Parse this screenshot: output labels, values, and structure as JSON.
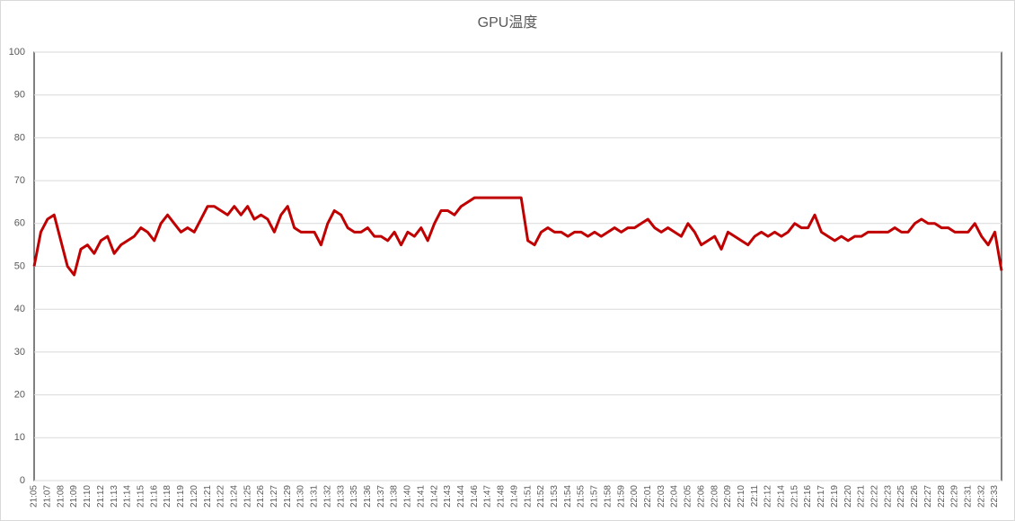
{
  "chart_data": {
    "type": "line",
    "title": "GPU温度",
    "categories": [
      "21:05",
      null,
      "21:07",
      null,
      "21:08",
      null,
      "21:09",
      null,
      "21:10",
      null,
      "21:12",
      null,
      "21:13",
      null,
      "21:14",
      null,
      "21:15",
      null,
      "21:16",
      null,
      "21:18",
      null,
      "21:19",
      null,
      "21:20",
      null,
      "21:21",
      null,
      "21:22",
      null,
      "21:24",
      null,
      "21:25",
      null,
      "21:26",
      null,
      "21:27",
      null,
      "21:29",
      null,
      "21:30",
      null,
      "21:31",
      null,
      "21:32",
      null,
      "21:33",
      null,
      "21:35",
      null,
      "21:36",
      null,
      "21:37",
      null,
      "21:38",
      null,
      "21:40",
      null,
      "21:41",
      null,
      "21:42",
      null,
      "21:43",
      null,
      "21:44",
      null,
      "21:46",
      null,
      "21:47",
      null,
      "21:48",
      null,
      "21:49",
      null,
      "21:51",
      null,
      "21:52",
      null,
      "21:53",
      null,
      "21:54",
      null,
      "21:55",
      null,
      "21:57",
      null,
      "21:58",
      null,
      "21:59",
      null,
      "22:00",
      null,
      "22:01",
      null,
      "22:03",
      null,
      "22:04",
      null,
      "22:05",
      null,
      "22:06",
      null,
      "22:08",
      null,
      "22:09",
      null,
      "22:10",
      null,
      "22:11",
      null,
      "22:12",
      null,
      "22:14",
      null,
      "22:15",
      null,
      "22:16",
      null,
      "22:17",
      null,
      "22:19",
      null,
      "22:20",
      null,
      "22:21",
      null,
      "22:22",
      null,
      "22:23",
      null,
      "22:25",
      null,
      "22:26",
      null,
      "22:27",
      null,
      "22:28",
      null,
      "22:29",
      null,
      "22:31",
      null,
      "22:32",
      null,
      "22:33",
      null
    ],
    "values": [
      50,
      58,
      61,
      62,
      56,
      50,
      48,
      54,
      55,
      53,
      56,
      57,
      53,
      55,
      56,
      57,
      59,
      58,
      56,
      60,
      62,
      60,
      58,
      59,
      58,
      61,
      64,
      64,
      63,
      62,
      64,
      62,
      64,
      61,
      62,
      61,
      58,
      62,
      64,
      59,
      58,
      58,
      58,
      55,
      60,
      63,
      62,
      59,
      58,
      58,
      59,
      57,
      57,
      56,
      58,
      55,
      58,
      57,
      59,
      56,
      60,
      63,
      63,
      62,
      64,
      65,
      66,
      66,
      66,
      66,
      66,
      66,
      66,
      66,
      56,
      55,
      58,
      59,
      58,
      58,
      57,
      58,
      58,
      57,
      58,
      57,
      58,
      59,
      58,
      59,
      59,
      60,
      61,
      59,
      58,
      59,
      58,
      57,
      60,
      58,
      55,
      56,
      57,
      54,
      58,
      57,
      56,
      55,
      57,
      58,
      57,
      58,
      57,
      58,
      60,
      59,
      59,
      62,
      58,
      57,
      56,
      57,
      56,
      57,
      57,
      58,
      58,
      58,
      58,
      59,
      58,
      58,
      60,
      61,
      60,
      60,
      59,
      59,
      58,
      58,
      58,
      60,
      57,
      55,
      58,
      49
    ],
    "color": "#c00000",
    "ylim": [
      0,
      100
    ],
    "yticks": [
      0,
      10,
      20,
      30,
      40,
      50,
      60,
      70,
      80,
      90,
      100
    ],
    "grid": true
  }
}
